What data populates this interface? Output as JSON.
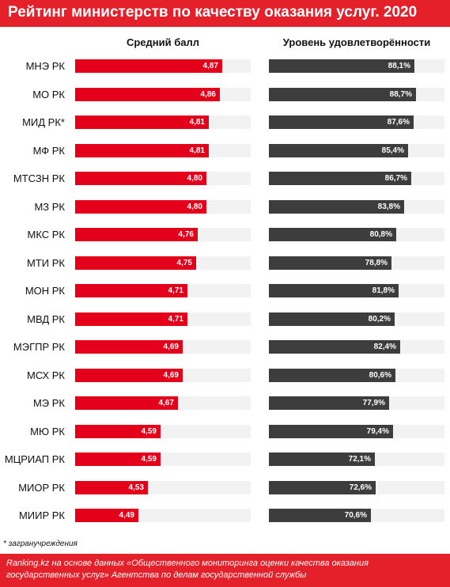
{
  "title": "Рейтинг министерств по качеству оказания услуг. 2020",
  "footnote": "* загранучреждения",
  "source": "Ranking.kz на основе данных «Общественного мониторинга оценки качества оказания государственных услуг» Агентства по делам государственной службы",
  "colors": {
    "brand_red": "#e4202a",
    "bar_red": "#e4001b",
    "bar_dark": "#3d3d3d",
    "track": "#f2f2f2"
  },
  "chart_data": [
    {
      "type": "bar",
      "orientation": "horizontal",
      "title": "Средний балл",
      "categories": [
        "МНЭ РК",
        "МО РК",
        "МИД РК*",
        "МФ РК",
        "МТСЗН РК",
        "МЗ РК",
        "МКС РК",
        "МТИ РК",
        "МОН РК",
        "МВД РК",
        "МЭГПР РК",
        "МСХ РК",
        "МЭ РК",
        "МЮ РК",
        "МЦРИАП РК",
        "МИОР РК",
        "МИИР РК"
      ],
      "values": [
        4.87,
        4.86,
        4.81,
        4.81,
        4.8,
        4.8,
        4.76,
        4.75,
        4.71,
        4.71,
        4.69,
        4.69,
        4.67,
        4.59,
        4.59,
        4.53,
        4.49
      ],
      "value_labels": [
        "4,87",
        "4,86",
        "4,81",
        "4,81",
        "4,80",
        "4,80",
        "4,76",
        "4,75",
        "4,71",
        "4,71",
        "4,69",
        "4,69",
        "4,67",
        "4,59",
        "4,59",
        "4,53",
        "4,49"
      ],
      "xlim": [
        4.2,
        5.0
      ],
      "bar_color": "#e4001b"
    },
    {
      "type": "bar",
      "orientation": "horizontal",
      "title": "Уровень удовлетворённости",
      "categories": [
        "МНЭ РК",
        "МО РК",
        "МИД РК*",
        "МФ РК",
        "МТСЗН РК",
        "МЗ РК",
        "МКС РК",
        "МТИ РК",
        "МОН РК",
        "МВД РК",
        "МЭГПР РК",
        "МСХ РК",
        "МЭ РК",
        "МЮ РК",
        "МЦРИАП РК",
        "МИОР РК",
        "МИИР РК"
      ],
      "values": [
        88.1,
        88.7,
        87.6,
        85.4,
        86.7,
        83.8,
        80.8,
        78.8,
        81.8,
        80.2,
        82.4,
        80.6,
        77.9,
        79.4,
        72.1,
        72.6,
        70.6
      ],
      "value_labels": [
        "88,1%",
        "88,7%",
        "87,6%",
        "85,4%",
        "86,7%",
        "83,8%",
        "80,8%",
        "78,8%",
        "81,8%",
        "80,2%",
        "82,4%",
        "80,6%",
        "77,9%",
        "79,4%",
        "72,1%",
        "72,6%",
        "70,6%"
      ],
      "xlim": [
        30,
        100
      ],
      "bar_color": "#3d3d3d"
    }
  ]
}
